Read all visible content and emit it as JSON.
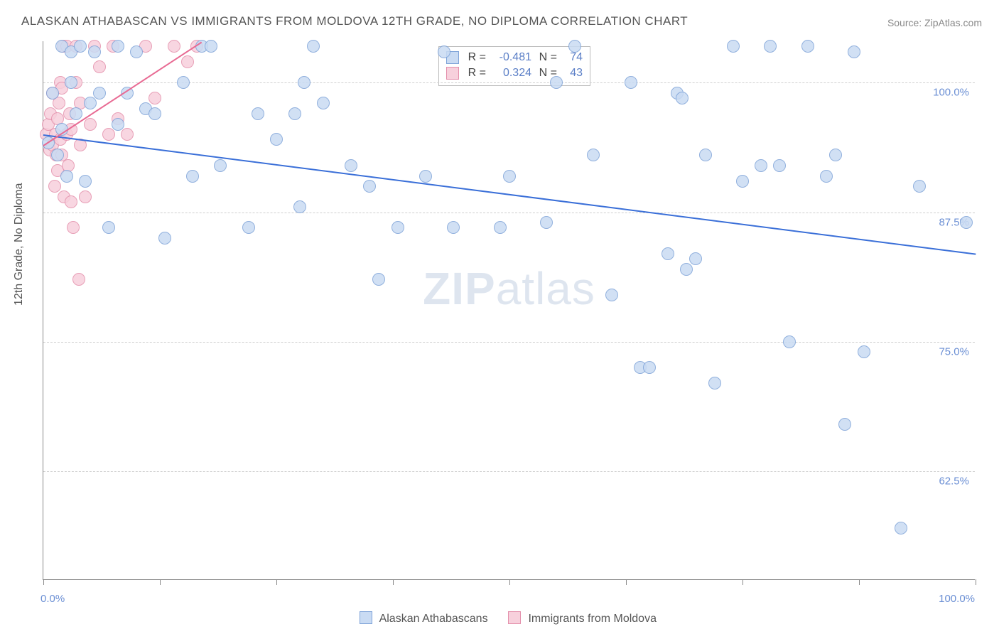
{
  "title": "ALASKAN ATHABASCAN VS IMMIGRANTS FROM MOLDOVA 12TH GRADE, NO DIPLOMA CORRELATION CHART",
  "source": "Source: ZipAtlas.com",
  "yaxis_title": "12th Grade, No Diploma",
  "watermark_a": "ZIP",
  "watermark_b": "atlas",
  "colors": {
    "series_a_fill": "#c9dbf3",
    "series_a_stroke": "#7ea3d8",
    "series_a_line": "#3a6fd8",
    "series_b_fill": "#f7d0dc",
    "series_b_stroke": "#e48fab",
    "series_b_line": "#e86a93",
    "grid": "#cfcfcf",
    "axis": "#888888",
    "tick_text": "#6b8fd4",
    "text": "#555555"
  },
  "marker_radius": 9,
  "line_width": 2.5,
  "xlim": [
    0,
    100
  ],
  "ylim": [
    52,
    104
  ],
  "y_gridlines": [
    62.5,
    75.0,
    87.5,
    100.0
  ],
  "y_tick_labels": [
    "62.5%",
    "75.0%",
    "87.5%",
    "100.0%"
  ],
  "x_ticks": [
    0,
    12.5,
    25,
    37.5,
    50,
    62.5,
    75,
    87.5,
    100
  ],
  "x_tick_labels": {
    "0": "0.0%",
    "100": "100.0%"
  },
  "stats": [
    {
      "swatch_fill": "#c9dbf3",
      "swatch_stroke": "#7ea3d8",
      "r_label": "R =",
      "r": "-0.481",
      "n_label": "N =",
      "n": "74"
    },
    {
      "swatch_fill": "#f7d0dc",
      "swatch_stroke": "#e48fab",
      "r_label": "R =",
      "r": "0.324",
      "n_label": "N =",
      "n": "43"
    }
  ],
  "legend": [
    {
      "swatch_fill": "#c9dbf3",
      "swatch_stroke": "#7ea3d8",
      "label": "Alaskan Athabascans"
    },
    {
      "swatch_fill": "#f7d0dc",
      "swatch_stroke": "#e48fab",
      "label": "Immigrants from Moldova"
    }
  ],
  "trend_lines": [
    {
      "series": "a",
      "x1": 0,
      "y1": 95.0,
      "x2": 100,
      "y2": 83.5,
      "color": "#3a6fd8"
    },
    {
      "series": "b",
      "x1": 0,
      "y1": 94.0,
      "x2": 17,
      "y2": 104.0,
      "color": "#e86a93"
    }
  ],
  "series_a": [
    [
      0.5,
      94.2
    ],
    [
      1,
      99
    ],
    [
      1.5,
      93
    ],
    [
      2,
      95.5
    ],
    [
      2,
      103.5
    ],
    [
      2.5,
      91
    ],
    [
      3,
      103
    ],
    [
      3,
      100
    ],
    [
      3.5,
      97
    ],
    [
      4,
      103.5
    ],
    [
      4.5,
      90.5
    ],
    [
      5,
      98
    ],
    [
      5.5,
      103
    ],
    [
      6,
      99
    ],
    [
      7,
      86
    ],
    [
      8,
      103.5
    ],
    [
      8,
      96
    ],
    [
      9,
      99
    ],
    [
      10,
      103
    ],
    [
      11,
      97.5
    ],
    [
      12,
      97
    ],
    [
      13,
      85
    ],
    [
      15,
      100
    ],
    [
      16,
      91
    ],
    [
      17,
      103.5
    ],
    [
      18,
      103.5
    ],
    [
      19,
      92
    ],
    [
      22,
      86
    ],
    [
      23,
      97
    ],
    [
      25,
      94.5
    ],
    [
      27,
      97
    ],
    [
      27.5,
      88
    ],
    [
      28,
      100
    ],
    [
      29,
      103.5
    ],
    [
      30,
      98
    ],
    [
      33,
      92
    ],
    [
      35,
      90
    ],
    [
      36,
      81
    ],
    [
      38,
      86
    ],
    [
      41,
      91
    ],
    [
      43,
      103
    ],
    [
      44,
      86
    ],
    [
      49,
      86
    ],
    [
      50,
      91
    ],
    [
      54,
      86.5
    ],
    [
      55,
      100
    ],
    [
      57,
      103.5
    ],
    [
      59,
      93
    ],
    [
      61,
      79.5
    ],
    [
      63,
      100
    ],
    [
      64,
      72.5
    ],
    [
      65,
      72.5
    ],
    [
      67,
      83.5
    ],
    [
      68,
      99
    ],
    [
      68.5,
      98.5
    ],
    [
      69,
      82
    ],
    [
      70,
      83
    ],
    [
      71,
      93
    ],
    [
      72,
      71
    ],
    [
      74,
      103.5
    ],
    [
      75,
      90.5
    ],
    [
      77,
      92
    ],
    [
      78,
      103.5
    ],
    [
      79,
      92
    ],
    [
      80,
      75
    ],
    [
      82,
      103.5
    ],
    [
      84,
      91
    ],
    [
      85,
      93
    ],
    [
      86,
      67
    ],
    [
      87,
      103
    ],
    [
      88,
      74
    ],
    [
      92,
      57
    ],
    [
      94,
      90
    ],
    [
      99,
      86.5
    ]
  ],
  "series_b": [
    [
      0.3,
      95
    ],
    [
      0.5,
      96
    ],
    [
      0.7,
      93.5
    ],
    [
      0.8,
      97
    ],
    [
      1,
      94
    ],
    [
      1,
      99
    ],
    [
      1.2,
      90
    ],
    [
      1.3,
      95
    ],
    [
      1.4,
      93
    ],
    [
      1.5,
      91.5
    ],
    [
      1.5,
      96.5
    ],
    [
      1.7,
      98
    ],
    [
      1.8,
      100
    ],
    [
      1.8,
      94.5
    ],
    [
      2,
      93
    ],
    [
      2,
      99.5
    ],
    [
      2.1,
      103.5
    ],
    [
      2.2,
      89
    ],
    [
      2.5,
      95
    ],
    [
      2.5,
      103.5
    ],
    [
      2.7,
      92
    ],
    [
      2.8,
      97
    ],
    [
      3,
      88.5
    ],
    [
      3,
      95.5
    ],
    [
      3.2,
      86
    ],
    [
      3.5,
      103.5
    ],
    [
      3.5,
      100
    ],
    [
      3.8,
      81
    ],
    [
      4,
      94
    ],
    [
      4,
      98
    ],
    [
      4.5,
      89
    ],
    [
      5,
      96
    ],
    [
      5.5,
      103.5
    ],
    [
      6,
      101.5
    ],
    [
      7,
      95
    ],
    [
      7.5,
      103.5
    ],
    [
      8,
      96.5
    ],
    [
      9,
      95
    ],
    [
      11,
      103.5
    ],
    [
      12,
      98.5
    ],
    [
      14,
      103.5
    ],
    [
      15.5,
      102
    ],
    [
      16.5,
      103.5
    ]
  ]
}
